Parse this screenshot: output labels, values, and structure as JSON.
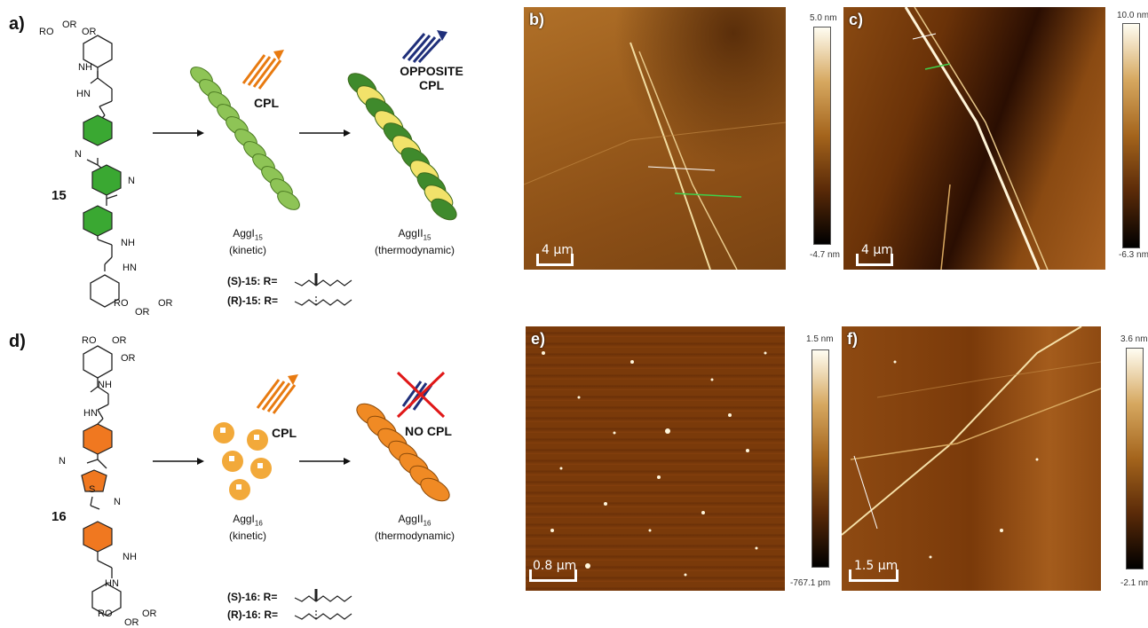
{
  "panels": {
    "a": "a)",
    "b": "b)",
    "c": "c)",
    "d": "d)",
    "e": "e)",
    "f": "f)"
  },
  "top": {
    "compound": "15",
    "ro_top_left": "RO",
    "ro_top_right1": "OR",
    "ro_top_right2": "OR",
    "nh1": "NH",
    "hn1": "HN",
    "n_cn1": "N",
    "n_cn2": "N",
    "nh2": "NH",
    "hn2": "HN",
    "ro_bot_left": "RO",
    "ro_bot_right": "OR",
    "ro_bot_center": "OR",
    "cpl": "CPL",
    "opposite": "OPPOSITE",
    "opposite_cpl": "CPL",
    "aggI": "AggI",
    "aggI_sub": "15",
    "aggI_note": "(kinetic)",
    "aggII": "AggII",
    "aggII_sub": "15",
    "aggII_note": "(thermodynamic)",
    "r_s": "(S)-15: R=",
    "r_r": "(R)-15: R="
  },
  "bottom": {
    "compound": "16",
    "ro_top_left": "RO",
    "ro_top_right1": "OR",
    "ro_top_right2": "OR",
    "nh1": "NH",
    "hn1": "HN",
    "n_cn1": "N",
    "s_atom": "S",
    "n_cn2": "N",
    "nh2": "NH",
    "hn2": "HN",
    "ro_bot_left": "RO",
    "ro_bot_right": "OR",
    "ro_bot_center": "OR",
    "cpl": "CPL",
    "no_cpl": "NO CPL",
    "aggI": "AggI",
    "aggI_sub": "16",
    "aggI_note": "(kinetic)",
    "aggII": "AggII",
    "aggII_sub": "16",
    "aggII_note": "(thermodynamic)",
    "r_s": "(S)-16: R=",
    "r_r": "(R)-16: R="
  },
  "afm": {
    "b": {
      "scale": "4 μm",
      "max": "5.0 nm",
      "min": "-4.7 nm"
    },
    "c": {
      "scale": "4 μm",
      "max": "10.0 nm",
      "min": "-6.3 nm"
    },
    "e": {
      "scale": "0.8 μm",
      "max": "1.5 nm",
      "min": "-767.1 pm"
    },
    "f": {
      "scale": "1.5 μm",
      "max": "3.6 nm",
      "min": "-2.1 nm"
    }
  },
  "colors": {
    "green_ring": "#3aa832",
    "orange_ring": "#f07820",
    "afm_dark": "#5a2a08",
    "afm_mid": "#9b5a18"
  }
}
